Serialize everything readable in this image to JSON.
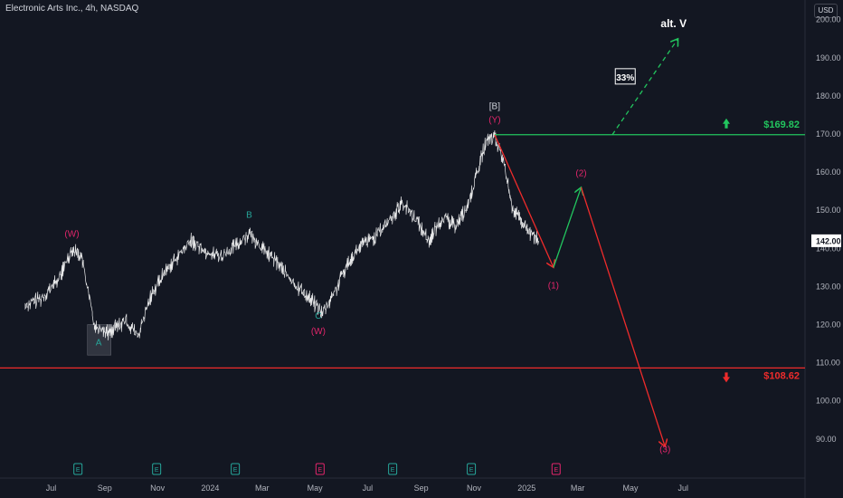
{
  "title": "Electronic Arts Inc., 4h, NASDAQ",
  "currency_button": "USD",
  "colors": {
    "background": "#131722",
    "price": "#ffffff",
    "green": "#22c55e",
    "red": "#ef2b2b",
    "magenta": "#e3256b",
    "teal": "#26a69a",
    "white_label": "#d1d4dc"
  },
  "chart_data": {
    "type": "line",
    "title": "Electronic Arts Inc., 4h, NASDAQ",
    "ylim": [
      85,
      203
    ],
    "y_scale": "linear",
    "y_ticks": [
      "200.00",
      "190.00",
      "180.00",
      "170.00",
      "160.00",
      "150.00",
      "140.00",
      "130.00",
      "120.00",
      "110.00",
      "100.00",
      "90.00"
    ],
    "x_ticks": [
      "Jul",
      "Sep",
      "Nov",
      "2024",
      "Mar",
      "May",
      "Jul",
      "Sep",
      "Nov",
      "2025",
      "Mar",
      "May",
      "Jul"
    ],
    "last_price": "142.00",
    "price_series": {
      "name": "",
      "x": [
        "2023-06-01",
        "2023-06-20",
        "2023-07-10",
        "2023-07-25",
        "2023-08-05",
        "2023-08-20",
        "2023-09-05",
        "2023-09-25",
        "2023-10-10",
        "2023-10-25",
        "2023-11-10",
        "2023-11-25",
        "2023-12-10",
        "2023-12-28",
        "2024-01-15",
        "2024-02-01",
        "2024-02-15",
        "2024-03-01",
        "2024-03-20",
        "2024-04-05",
        "2024-04-25",
        "2024-05-10",
        "2024-05-25",
        "2024-06-10",
        "2024-06-25",
        "2024-07-10",
        "2024-07-25",
        "2024-08-10",
        "2024-08-25",
        "2024-09-10",
        "2024-09-25",
        "2024-10-10",
        "2024-10-25",
        "2024-11-05",
        "2024-11-15",
        "2024-11-25",
        "2024-12-05",
        "2024-12-15",
        "2024-12-25",
        "2025-01-05",
        "2025-01-15"
      ],
      "y": [
        125,
        127,
        132,
        140,
        138,
        120,
        118,
        121,
        117,
        128,
        134,
        138,
        142,
        139,
        138,
        141,
        144,
        140,
        136,
        131,
        127,
        123,
        129,
        137,
        141,
        143,
        147,
        152,
        148,
        142,
        148,
        146,
        151,
        160,
        168,
        169,
        163,
        151,
        147,
        144,
        142
      ]
    },
    "levels": [
      {
        "label": "$169.82",
        "value": 169.82,
        "color": "#22c55e"
      },
      {
        "label": "$108.62",
        "value": 108.62,
        "color": "#ef2b2b"
      }
    ],
    "wave_labels": [
      {
        "text": "(W)",
        "x": "2023-07-25",
        "y": 143,
        "color": "#e3256b"
      },
      {
        "text": "A",
        "x": "2023-08-25",
        "y": 114.5,
        "color": "#26a69a"
      },
      {
        "text": "B",
        "x": "2024-02-15",
        "y": 148,
        "color": "#26a69a"
      },
      {
        "text": "C",
        "x": "2024-05-05",
        "y": 121.5,
        "color": "#26a69a"
      },
      {
        "text": "(W)",
        "x": "2024-05-05",
        "y": 117.5,
        "color": "#e3256b"
      },
      {
        "text": "[B]",
        "x": "2024-11-25",
        "y": 176.5,
        "color": "#d1d4dc"
      },
      {
        "text": "(Y)",
        "x": "2024-11-25",
        "y": 173,
        "color": "#e3256b"
      },
      {
        "text": "(1)",
        "x": "2025-02-01",
        "y": 129.5,
        "color": "#e3256b"
      },
      {
        "text": "(2)",
        "x": "2025-03-05",
        "y": 159,
        "color": "#e3256b"
      },
      {
        "text": "(3)",
        "x": "2025-06-10",
        "y": 86.5,
        "color": "#e3256b"
      },
      {
        "text": "alt. V",
        "x": "2025-06-20",
        "y": 198,
        "color": "#ffffff"
      }
    ],
    "annotation_box": {
      "text": "33%",
      "x": "2025-04-25",
      "y": 185
    },
    "projections": [
      {
        "from": [
          "2024-11-25",
          169.8
        ],
        "to": [
          "2025-02-01",
          135
        ],
        "color": "#ef2b2b",
        "style": "solid"
      },
      {
        "from": [
          "2025-02-01",
          135
        ],
        "to": [
          "2025-03-05",
          156
        ],
        "color": "#22c55e",
        "style": "solid"
      },
      {
        "from": [
          "2025-03-05",
          156
        ],
        "to": [
          "2025-06-10",
          88
        ],
        "color": "#ef2b2b",
        "style": "solid"
      },
      {
        "from": [
          "2025-04-10",
          169.8
        ],
        "to": [
          "2025-06-25",
          195
        ],
        "color": "#22c55e",
        "style": "dashed"
      }
    ],
    "earnings_markers": [
      {
        "x": "2023-08-01",
        "color": "#26a69a"
      },
      {
        "x": "2023-10-31",
        "color": "#26a69a"
      },
      {
        "x": "2024-01-30",
        "color": "#26a69a"
      },
      {
        "x": "2024-05-07",
        "color": "#e3256b"
      },
      {
        "x": "2024-07-30",
        "color": "#26a69a"
      },
      {
        "x": "2024-10-29",
        "color": "#26a69a"
      },
      {
        "x": "2025-02-04",
        "color": "#e3256b"
      }
    ],
    "earnings_marker_text": "E"
  }
}
